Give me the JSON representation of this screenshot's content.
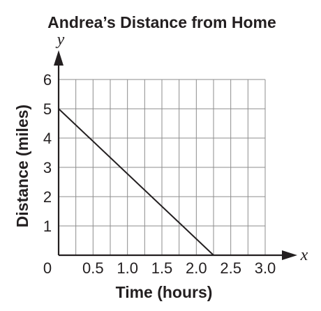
{
  "chart_data": {
    "type": "line",
    "title": "Andrea’s Distance from Home",
    "xlabel": "Time (hours)",
    "ylabel": "Distance (miles)",
    "x_axis_variable": "x",
    "y_axis_variable": "y",
    "origin_label": "0",
    "xlim": [
      0,
      3.0
    ],
    "ylim": [
      0,
      6
    ],
    "x_ticks": [
      "0.5",
      "1.0",
      "1.5",
      "2.0",
      "2.5",
      "3.0"
    ],
    "y_ticks": [
      "1",
      "2",
      "3",
      "4",
      "5",
      "6"
    ],
    "x_tick_values": [
      0.5,
      1.0,
      1.5,
      2.0,
      2.5,
      3.0
    ],
    "y_tick_values": [
      1,
      2,
      3,
      4,
      5,
      6
    ],
    "x_grid_step": 0.25,
    "y_grid_step": 1,
    "grid": true,
    "series": [
      {
        "x": [
          0,
          2.25
        ],
        "y": [
          5,
          0
        ]
      }
    ]
  }
}
